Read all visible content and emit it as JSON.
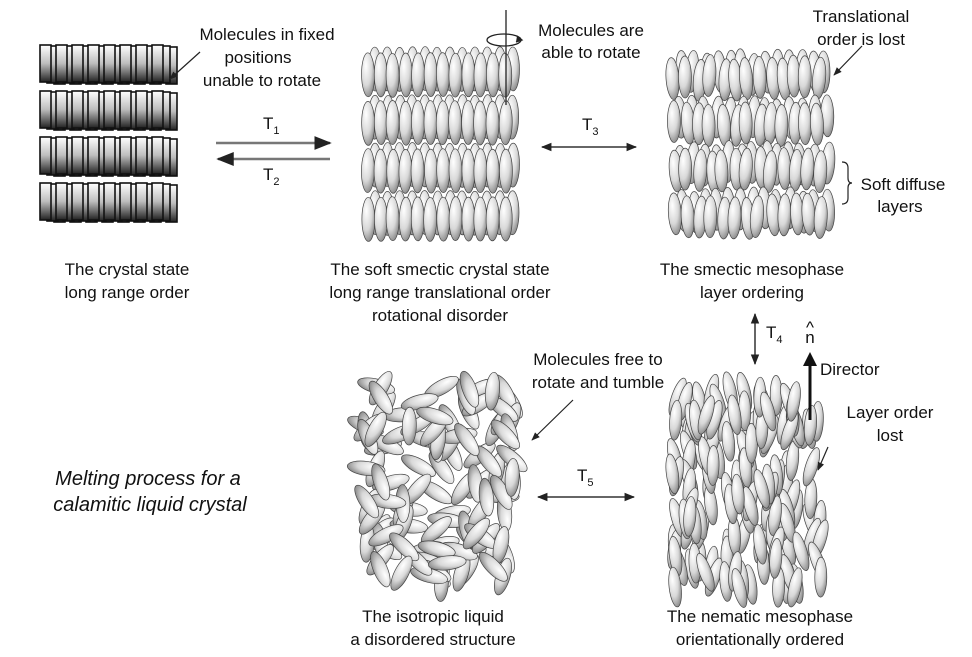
{
  "states": {
    "crystal": {
      "line1": "The crystal state",
      "line2": "long range order"
    },
    "soft_smectic": {
      "line1": "The soft smectic crystal state",
      "line2": "long range translational order",
      "line3": "rotational disorder"
    },
    "smectic": {
      "line1": "The smectic mesophase",
      "line2": "layer ordering"
    },
    "isotropic": {
      "line1": "The isotropic liquid",
      "line2": "a disordered structure"
    },
    "nematic": {
      "line1": "The nematic mesophase",
      "line2": "orientationally ordered"
    }
  },
  "annotations": {
    "fixed": {
      "line1": "Molecules in fixed",
      "line2": "positions",
      "line3": "unable to rotate"
    },
    "rotate": {
      "line1": "Molecules are",
      "line2": "able to rotate"
    },
    "translational": {
      "line1": "Translational",
      "line2": "order is lost"
    },
    "soft_layers": {
      "line1": "Soft diffuse",
      "line2": "layers"
    },
    "free": {
      "line1": "Molecules free to",
      "line2": "rotate and tumble"
    },
    "layer_lost": {
      "line1": "Layer order",
      "line2": "lost"
    },
    "director": "Director",
    "director_symbol": "n",
    "director_hat": "^"
  },
  "transitions": {
    "t1": {
      "letter": "T",
      "sub": "1"
    },
    "t2": {
      "letter": "T",
      "sub": "2"
    },
    "t3": {
      "letter": "T",
      "sub": "3"
    },
    "t4": {
      "letter": "T",
      "sub": "4"
    },
    "t5": {
      "letter": "T",
      "sub": "5"
    }
  },
  "caption": {
    "line1": "Melting process for a",
    "line2": "calamitic liquid crystal"
  }
}
